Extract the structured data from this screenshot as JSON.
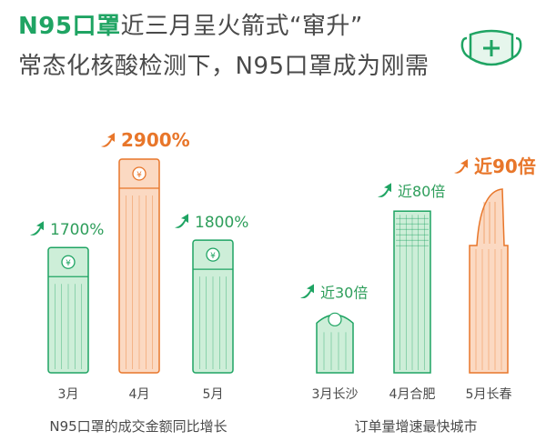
{
  "title": {
    "line1_highlight": "N95口罩",
    "line1_rest": "近三月呈火箭式“窜升”",
    "line2": "常态化核酸检测下，N95口罩成为刚需"
  },
  "colors": {
    "green": "#1fa463",
    "green_fill": "#cdeed8",
    "orange": "#e8762a",
    "orange_fill": "#fbd9c2",
    "text": "#4a4a4a"
  },
  "chart_data": [
    {
      "type": "bar",
      "title": "",
      "xlabel": "N95口罩的成交金额同比增长",
      "ylabel": "",
      "categories": [
        "3月",
        "4月",
        "5月"
      ],
      "values": [
        1700,
        2900,
        1800
      ],
      "value_labels": [
        "1700%",
        "2900%",
        "1800%"
      ],
      "highlight": [
        false,
        true,
        false
      ],
      "unit": "%",
      "ylim": [
        0,
        3000
      ]
    },
    {
      "type": "bar",
      "title": "",
      "xlabel": "订单量增速最快城市",
      "ylabel": "",
      "categories": [
        "3月长沙",
        "4月合肥",
        "5月长春"
      ],
      "values": [
        30,
        80,
        90
      ],
      "value_labels": [
        "近30倍",
        "近80倍",
        "近90倍"
      ],
      "highlight": [
        false,
        false,
        true
      ],
      "unit": "倍",
      "ylim": [
        0,
        100
      ]
    }
  ]
}
